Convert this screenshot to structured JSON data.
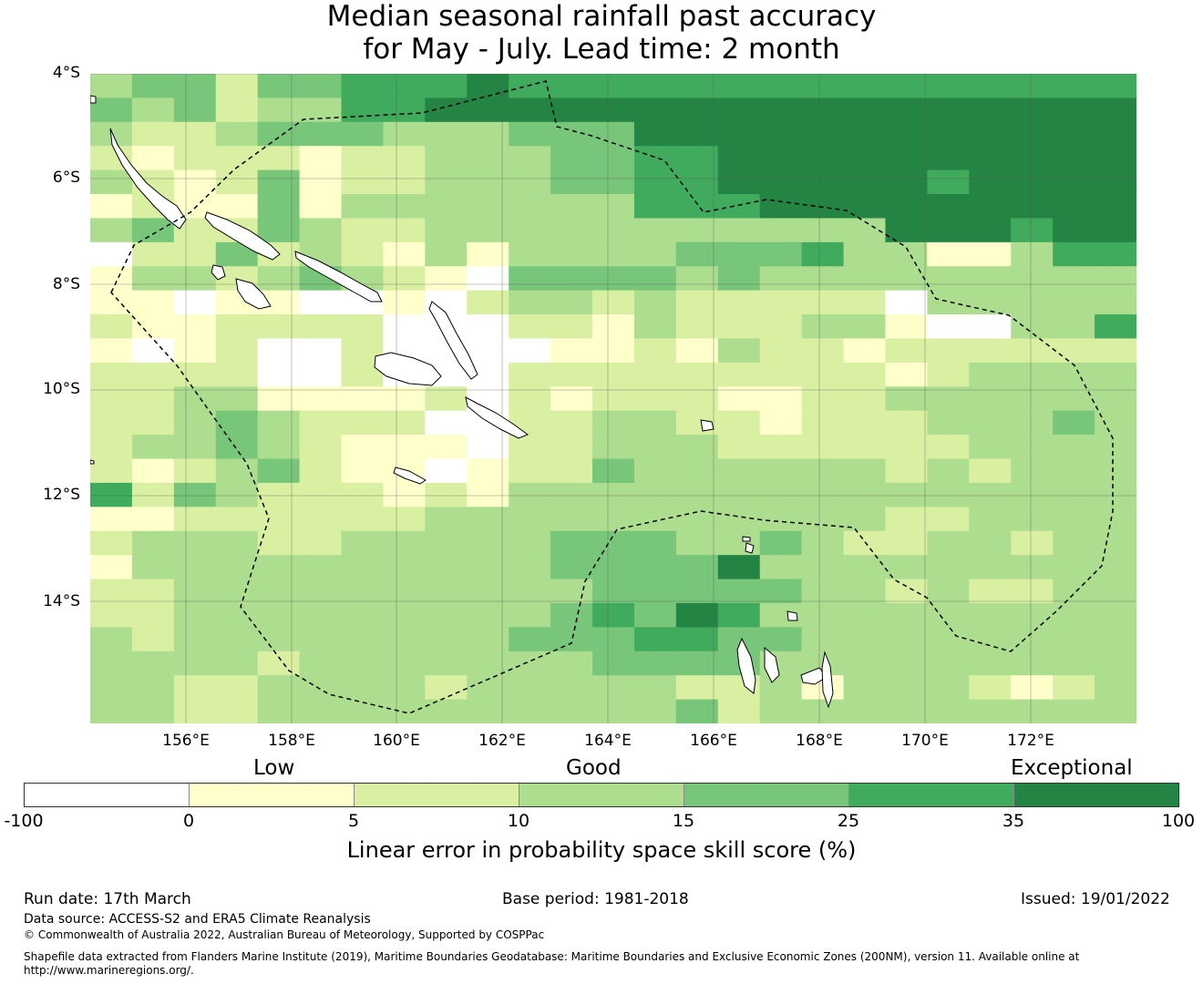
{
  "title": {
    "line1": "Median seasonal rainfall past accuracy",
    "line2": "for May - July. Lead time: 2 month"
  },
  "map": {
    "lat_labels": [
      "4°S",
      "6°S",
      "8°S",
      "10°S",
      "12°S",
      "14°S"
    ],
    "lon_labels": [
      "156°E",
      "158°E",
      "160°E",
      "162°E",
      "164°E",
      "166°E",
      "168°E",
      "170°E",
      "172°E"
    ],
    "grid_categories_rows": [
      "3442445556555555555555555",
      "4342335566666666666666666",
      "3223444333444666666666666",
      "2122212233344556666666666",
      "3212412233344556666656666",
      "1211413333333555666666666",
      "3422432233333333333666566",
      "0224232131333344453311355",
      "1332343210444434333333333",
      "1101100102332322222033333",
      "2112222000221322233100335",
      "1012002000011213221222222",
      "2222002000222222222123333",
      "2233111120212221122333333",
      "2234322200223322122233343",
      "2334321110223332222223333",
      "2123421101224333333232333",
      "5243222121333333333333333",
      "1122222233333333333223333",
      "2333223333344433432233233",
      "1333333333344446333333333",
      "2233333333334444433232233",
      "2233333333345465333333333",
      "3233333333444554433333333",
      "3333233333334444333333333",
      "3322333323333322313332123",
      "3322333333333342333333333"
    ],
    "palette": [
      "#ffffff",
      "#ffffcc",
      "#d9f0a3",
      "#addd8e",
      "#78c679",
      "#41ab5d",
      "#238443"
    ]
  },
  "legend": {
    "category_labels": [
      "Low",
      "Good",
      "Exceptional"
    ],
    "colors": [
      "#ffffff",
      "#ffffcc",
      "#d9f0a3",
      "#addd8e",
      "#78c679",
      "#41ab5d",
      "#238443"
    ],
    "ticks": [
      "-100",
      "0",
      "5",
      "10",
      "15",
      "25",
      "35",
      "100"
    ],
    "title": "Linear error in probability space skill score (%)"
  },
  "footer": {
    "run_date": "Run date: 17th March",
    "base_period": "Base period: 1981-2018",
    "issued": "Issued: 19/01/2022",
    "data_source": "Data source: ACCESS-S2 and ERA5 Climate Reanalysis",
    "copyright": "© Commonwealth of Australia 2022, Australian Bureau of Meteorology, Supported by COSPPac",
    "shapefile_line1": "Shapefile data extracted from Flanders Marine Institute (2019), Maritime Boundaries Geodatabase: Maritime Boundaries and Exclusive Economic Zones (200NM), version 11. Available online at",
    "shapefile_line2": "http://www.marineregions.org/."
  }
}
